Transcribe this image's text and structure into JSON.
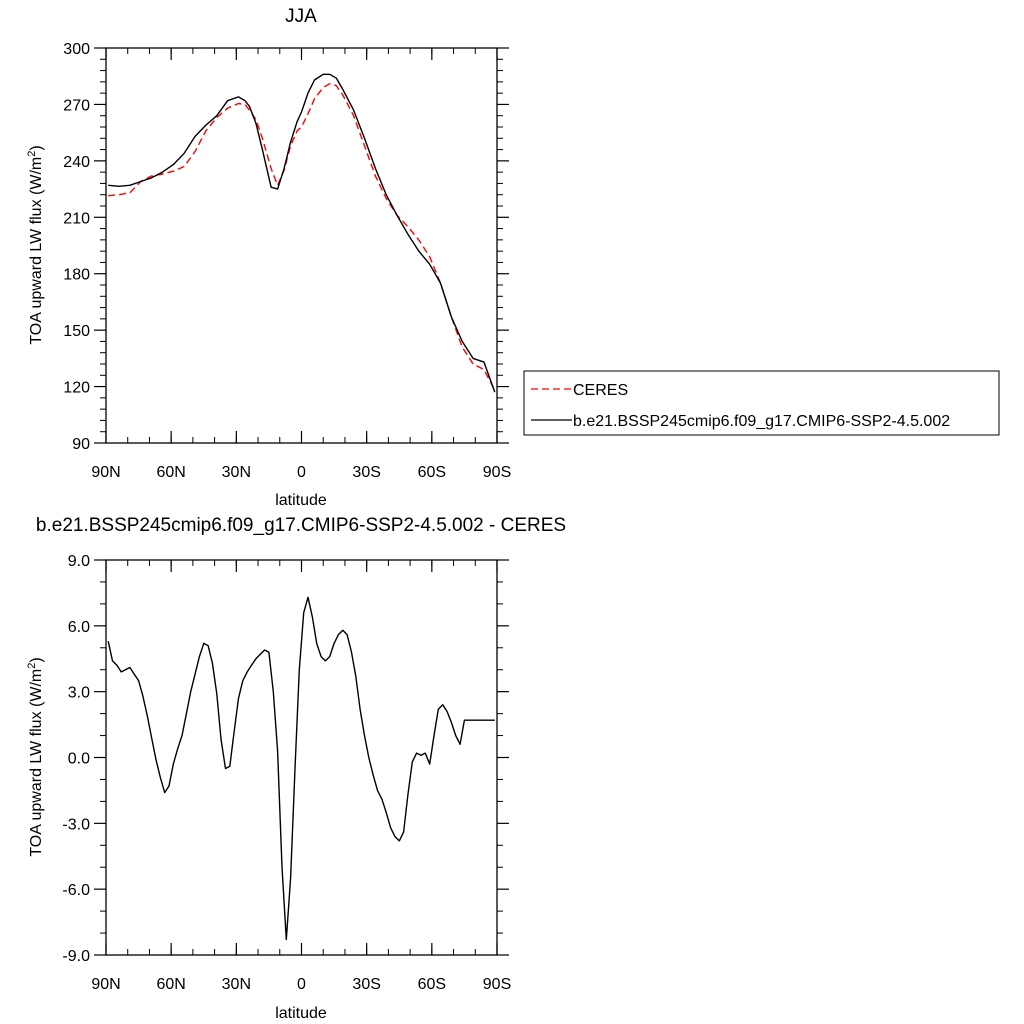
{
  "chart_data": [
    {
      "type": "line",
      "title": "JJA",
      "xlabel": "latitude",
      "ylabel": "TOA upward LW flux (W/m²)",
      "xlim": [
        90,
        -90
      ],
      "ylim": [
        90,
        300
      ],
      "xticks": [
        90,
        60,
        30,
        0,
        -30,
        -60,
        -90
      ],
      "xticklabels": [
        "90N",
        "60N",
        "30N",
        "0",
        "30S",
        "60S",
        "90S"
      ],
      "yticks": [
        90,
        120,
        150,
        180,
        210,
        240,
        270,
        300
      ],
      "yticklabels": [
        "90",
        "120",
        "150",
        "180",
        "210",
        "240",
        "270",
        "300"
      ],
      "legend": "outside-right",
      "series": [
        {
          "name": "CERES",
          "style": "dashed",
          "color": "#ff0000",
          "x": [
            89,
            84,
            79,
            74,
            69,
            64,
            59,
            54,
            49,
            44,
            39,
            34,
            29,
            26,
            24,
            21,
            18,
            14,
            11,
            8,
            5,
            2,
            0,
            -3,
            -6,
            -10,
            -13,
            -16,
            -19,
            -24,
            -29,
            -34,
            -39,
            -44,
            -49,
            -54,
            -59,
            -64,
            -69,
            -74,
            -79,
            -84,
            -89
          ],
          "values": [
            221.5,
            222,
            223,
            229,
            232,
            233,
            234.5,
            237,
            245,
            256,
            263,
            268,
            270.5,
            270,
            267,
            262,
            252,
            236,
            227,
            235,
            248,
            256,
            258,
            265,
            273,
            279,
            281,
            280,
            275,
            264,
            248,
            232,
            220,
            211,
            205,
            198,
            189,
            175,
            157,
            141,
            132,
            129,
            118
          ]
        },
        {
          "name": "b.e21.BSSP245cmip6.f09_g17.CMIP6-SSP2-4.5.002",
          "style": "solid",
          "color": "#000000",
          "x": [
            89,
            84,
            79,
            74,
            69,
            64,
            59,
            54,
            49,
            44,
            39,
            34,
            29,
            26,
            24,
            21,
            18,
            14,
            11,
            8,
            5,
            2,
            0,
            -3,
            -6,
            -10,
            -13,
            -16,
            -19,
            -24,
            -29,
            -34,
            -39,
            -44,
            -49,
            -54,
            -59,
            -64,
            -69,
            -74,
            -79,
            -84,
            -89
          ],
          "values": [
            227,
            226.5,
            227,
            229,
            231,
            234,
            238,
            244,
            253,
            259,
            264,
            272,
            274,
            272,
            269,
            260,
            246,
            226,
            225,
            236,
            250,
            261,
            266,
            276,
            283,
            286,
            286,
            284,
            278,
            267,
            252,
            236,
            222,
            211,
            201,
            192,
            185,
            175,
            157,
            144,
            135,
            133,
            117
          ]
        }
      ]
    },
    {
      "type": "line",
      "title": "b.e21.BSSP245cmip6.f09_g17.CMIP6-SSP2-4.5.002 - CERES",
      "xlabel": "latitude",
      "ylabel": "TOA upward LW flux (W/m²)",
      "xlim": [
        90,
        -90
      ],
      "ylim": [
        -9,
        9
      ],
      "xticks": [
        90,
        60,
        30,
        0,
        -30,
        -60,
        -90
      ],
      "xticklabels": [
        "90N",
        "60N",
        "30N",
        "0",
        "30S",
        "60S",
        "90S"
      ],
      "yticks": [
        -9,
        -6,
        -3,
        0,
        3,
        6,
        9
      ],
      "yticklabels": [
        "-9.0",
        "-6.0",
        "-3.0",
        "0.0",
        "3.0",
        "6.0",
        "9.0"
      ],
      "series": [
        {
          "style": "solid",
          "color": "#000000",
          "x": [
            89,
            87,
            85,
            83,
            81,
            79,
            77,
            75,
            73,
            71,
            69,
            67,
            65,
            63,
            61,
            59,
            57,
            55,
            53,
            51,
            49,
            47,
            45,
            43,
            41,
            39,
            37,
            35,
            33,
            31,
            29,
            27,
            25,
            23,
            21,
            19,
            17,
            15,
            13,
            11,
            9,
            7,
            5,
            3,
            1,
            -1,
            -3,
            -5,
            -7,
            -9,
            -11,
            -13,
            -15,
            -17,
            -19,
            -21,
            -23,
            -25,
            -27,
            -29,
            -31,
            -33,
            -35,
            -37,
            -39,
            -41,
            -43,
            -45,
            -47,
            -49,
            -51,
            -53,
            -55,
            -57,
            -59,
            -61,
            -63,
            -65,
            -67,
            -69,
            -71,
            -73,
            -75,
            -77,
            -79,
            -81,
            -83,
            -85,
            -87,
            -89
          ],
          "values": [
            5.3,
            4.4,
            4.2,
            3.9,
            4.0,
            4.1,
            3.8,
            3.5,
            2.8,
            1.9,
            0.9,
            -0.1,
            -0.9,
            -1.6,
            -1.3,
            -0.3,
            0.4,
            1.0,
            2.0,
            3.0,
            3.8,
            4.6,
            5.2,
            5.1,
            4.3,
            2.9,
            0.8,
            -0.5,
            -0.4,
            1.2,
            2.7,
            3.5,
            3.9,
            4.2,
            4.5,
            4.7,
            4.9,
            4.8,
            3.0,
            0.3,
            -5.0,
            -8.3,
            -5.5,
            -0.5,
            4.0,
            6.6,
            7.3,
            6.4,
            5.2,
            4.6,
            4.4,
            4.6,
            5.2,
            5.6,
            5.8,
            5.6,
            4.8,
            3.7,
            2.2,
            1.0,
            0.0,
            -0.8,
            -1.5,
            -1.9,
            -2.5,
            -3.2,
            -3.6,
            -3.8,
            -3.4,
            -1.7,
            -0.2,
            0.2,
            0.1,
            0.2,
            -0.3,
            1.0,
            2.2,
            2.4,
            2.1,
            1.6,
            1.0,
            0.6,
            1.7,
            1.7,
            1.7,
            1.7,
            1.7,
            1.7,
            1.7,
            1.7
          ]
        }
      ]
    }
  ]
}
